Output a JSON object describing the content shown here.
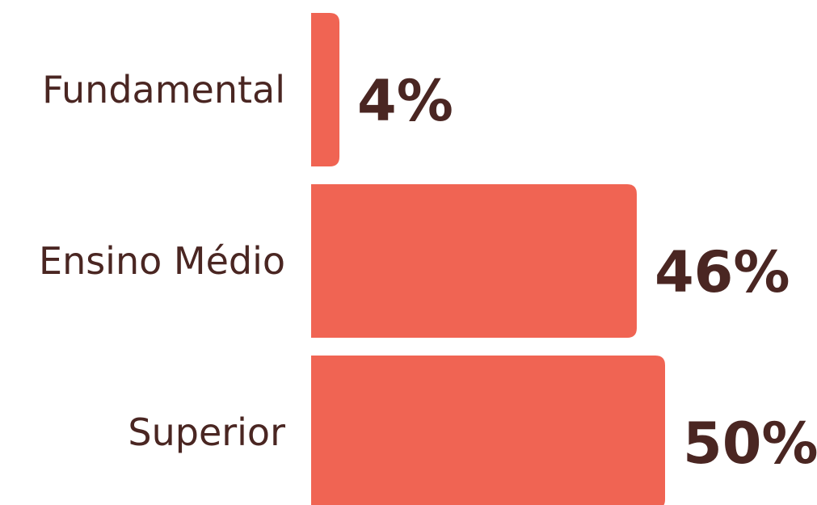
{
  "chart_data": {
    "type": "bar",
    "orientation": "horizontal",
    "categories": [
      "Fundamental",
      "Ensino Médio",
      "Superior"
    ],
    "values": [
      4,
      46,
      50
    ],
    "value_labels": [
      "4%",
      "46%",
      "50%"
    ],
    "unit": "%",
    "title": "",
    "xlabel": "",
    "ylabel": "",
    "xlim": [
      0,
      50
    ],
    "grid": false,
    "legend": "none"
  },
  "colors": {
    "bar": "#F06453",
    "text": "#4A2622",
    "background": "#FFFFFF"
  }
}
